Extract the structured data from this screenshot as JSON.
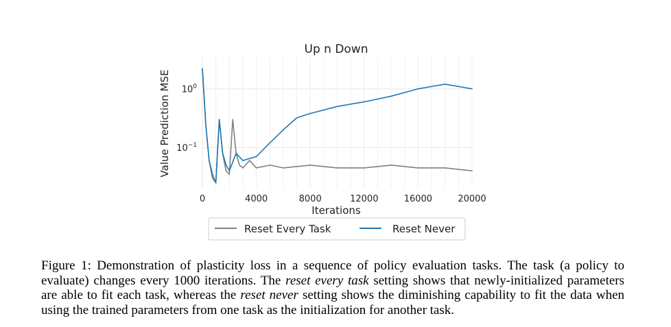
{
  "chart_data": {
    "type": "line",
    "title": "Up n Down",
    "xlabel": "Iterations",
    "ylabel": "Value Prediction MSE",
    "x_ticks": [
      0,
      4000,
      8000,
      12000,
      16000,
      20000
    ],
    "y_ticks": [
      {
        "value": 1,
        "base": "10",
        "exp": "0"
      },
      {
        "value": 0.1,
        "base": "10",
        "exp": "−1"
      }
    ],
    "xlim": [
      0,
      20000
    ],
    "ylim": [
      0.02,
      3.5
    ],
    "y_scale": "log",
    "grid": true,
    "task_boundary_every": 1000,
    "legend_position": "bottom-center",
    "series": [
      {
        "name": "Reset Every Task",
        "color": "#808080",
        "x": [
          0,
          250,
          500,
          750,
          1000,
          1250,
          1500,
          1750,
          2000,
          2250,
          2500,
          2750,
          3000,
          3500,
          4000,
          5000,
          6000,
          8000,
          10000,
          12000,
          14000,
          16000,
          18000,
          20000
        ],
        "values": [
          2.2,
          0.25,
          0.06,
          0.03,
          0.025,
          0.3,
          0.08,
          0.04,
          0.035,
          0.3,
          0.08,
          0.05,
          0.045,
          0.06,
          0.045,
          0.05,
          0.045,
          0.05,
          0.045,
          0.045,
          0.05,
          0.045,
          0.045,
          0.04
        ]
      },
      {
        "name": "Reset Never",
        "color": "#1f77b4",
        "x": [
          0,
          250,
          500,
          750,
          1000,
          1250,
          1500,
          1750,
          2000,
          2500,
          3000,
          4000,
          5000,
          6000,
          7000,
          8000,
          10000,
          12000,
          14000,
          16000,
          18000,
          20000
        ],
        "values": [
          2.2,
          0.25,
          0.06,
          0.035,
          0.025,
          0.3,
          0.08,
          0.05,
          0.04,
          0.08,
          0.06,
          0.07,
          0.12,
          0.2,
          0.32,
          0.38,
          0.5,
          0.6,
          0.75,
          1.0,
          1.2,
          1.0
        ]
      }
    ]
  },
  "caption": {
    "label": "Figure 1:",
    "part1": "Demonstration of plasticity loss in a sequence of policy evaluation tasks. The task (a policy to evaluate) changes every 1000 iterations. The",
    "em1": "reset every task",
    "part2": "setting shows that newly-initialized parameters are able to fit each task, whereas the",
    "em2": "reset never",
    "part3": "setting shows the diminishing capability to fit the data when using the trained parameters from one task as the initialization for another task."
  }
}
